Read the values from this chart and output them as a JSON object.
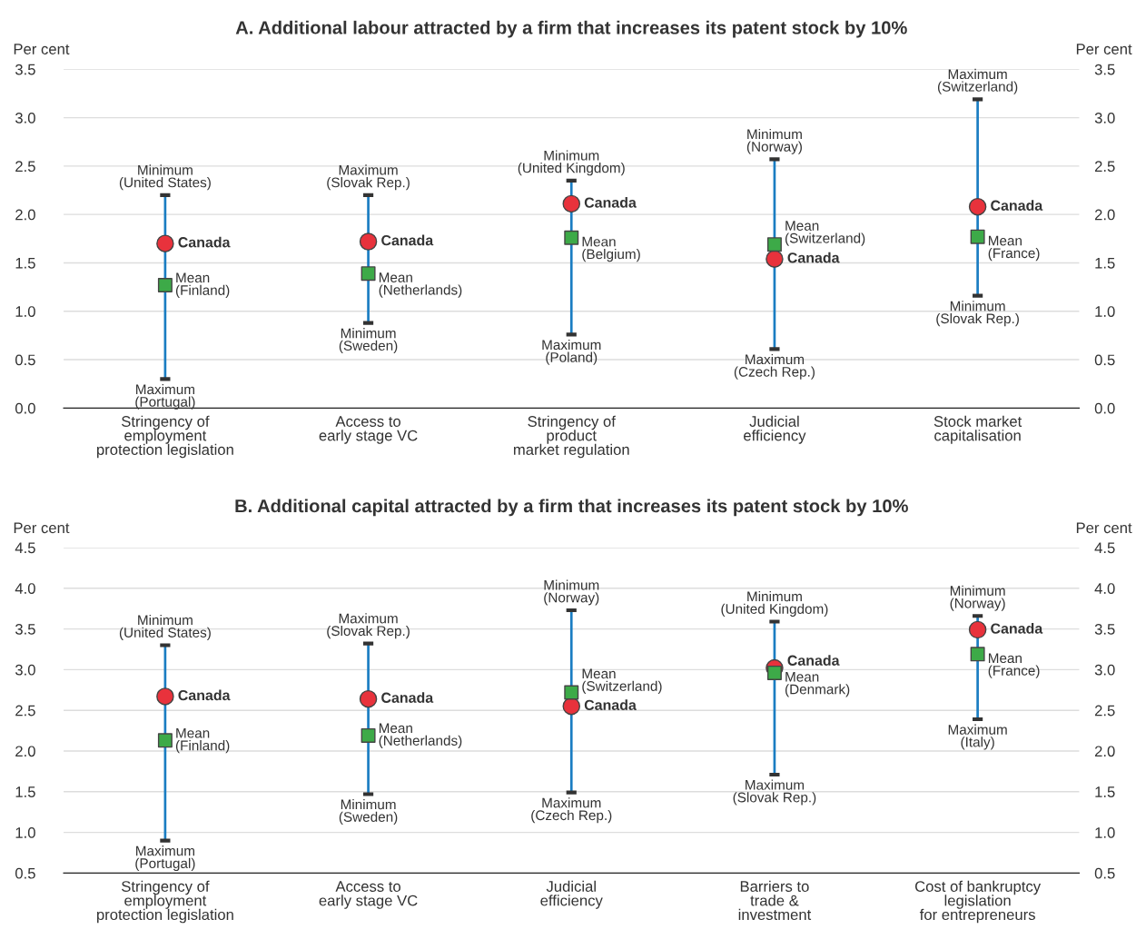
{
  "chart_data": [
    {
      "type": "bar",
      "title": "A. Additional labour attracted by a firm that increases its patent stock by 10%",
      "ylabel": "Per cent",
      "y2label": "Per cent",
      "categories": [
        "Stringency of\nemployment\nprotection legislation",
        "Access to\nearly stage VC",
        "Stringency of\nproduct\nmarket regulation",
        "Judicial\nefficiency",
        "Stock market\ncapitalisation"
      ],
      "ylim": [
        0,
        3.5
      ],
      "yticks": [
        {
          "value": 0,
          "label": "0.0"
        },
        0.5,
        {
          "value": 1,
          "label": "1.0"
        },
        1.5,
        {
          "value": 2,
          "label": "2.0"
        },
        2.5,
        {
          "value": 3,
          "label": "3.0"
        },
        3.5
      ],
      "y2lim": [
        0,
        3.5
      ],
      "y2ticks": [
        {
          "value": 0,
          "label": "0.0"
        },
        0.5,
        {
          "value": 1,
          "label": "1.0"
        },
        1.5,
        {
          "value": 2,
          "label": "2.0"
        },
        2.5,
        {
          "value": 3,
          "label": "3.0"
        },
        3.5
      ],
      "grid": "y",
      "legend": false,
      "series": [
        {
          "color": "#1a7dc2",
          "base": [
            0.3,
            0.88,
            0.76,
            0.61,
            1.16
          ],
          "values": [
            1.9,
            1.32,
            1.59,
            1.96,
            2.03
          ]
        },
        {
          "type": "scatter",
          "name": "Canada",
          "color": "#e8323c",
          "marker": "circle",
          "values": [
            1.7,
            1.72,
            2.11,
            1.54,
            2.08
          ]
        },
        {
          "type": "scatter",
          "color": "#3daa48",
          "marker": "square",
          "values": [
            1.27,
            1.39,
            1.76,
            1.69,
            1.77
          ]
        }
      ],
      "annotations": [
        {
          "text": "Minimum\n(United States)",
          "x": "Stringency of\nemployment\nprotection legislation",
          "y": 2.2
        },
        {
          "text": "Maximum\n(Portugal)",
          "x": "Stringency of\nemployment\nprotection legislation",
          "y": 0.3
        },
        {
          "text": "Mean\n(Finland)",
          "x": "Stringency of\nemployment\nprotection legislation",
          "y": 1.27
        },
        {
          "text": "Maximum\n(Slovak Rep.)",
          "x": "Access to\nearly stage VC",
          "y": 2.2
        },
        {
          "text": "Minimum\n(Sweden)",
          "x": "Access to\nearly stage VC",
          "y": 0.88
        },
        {
          "text": "Mean\n(Netherlands)",
          "x": "Access to\nearly stage VC",
          "y": 1.39
        },
        {
          "text": "Minimum\n(United Kingdom)",
          "x": "Stringency of\nproduct\nmarket regulation",
          "y": 2.35
        },
        {
          "text": "Maximum\n(Poland)",
          "x": "Stringency of\nproduct\nmarket regulation",
          "y": 0.76
        },
        {
          "text": "Mean\n(Belgium)",
          "x": "Stringency of\nproduct\nmarket regulation",
          "y": 1.76
        },
        {
          "text": "Minimum\n(Norway)",
          "x": "Judicial\nefficiency",
          "y": 2.57
        },
        {
          "text": "Maximum\n(Czech Rep.)",
          "x": "Judicial\nefficiency",
          "y": 0.61
        },
        {
          "text": "Mean\n(Switzerland)",
          "x": "Judicial\nefficiency",
          "y": 1.69
        },
        {
          "text": "Maximum\n(Switzerland)",
          "x": "Stock market\ncapitalisation",
          "y": 3.19
        },
        {
          "text": "Minimum\n(Slovak Rep.)",
          "x": "Stock market\ncapitalisation",
          "y": 1.16
        },
        {
          "text": "Mean\n(France)",
          "x": "Stock market\ncapitalisation",
          "y": 1.77
        }
      ]
    },
    {
      "type": "bar",
      "title": "B. Additional capital attracted by a firm that increases its patent stock by 10%",
      "ylabel": "Per cent",
      "y2label": "Per cent",
      "categories": [
        "Stringency of\nemployment\nprotection legislation",
        "Access to\nearly stage VC",
        "Judicial\nefficiency",
        "Barriers to\ntrade &\ninvestment",
        "Cost of bankruptcy\nlegislation\nfor entrepreneurs"
      ],
      "ylim": [
        0.5,
        4.5
      ],
      "yticks": [
        0.5,
        {
          "value": 1,
          "label": "1.0"
        },
        1.5,
        {
          "value": 2,
          "label": "2.0"
        },
        2.5,
        {
          "value": 3,
          "label": "3.0"
        },
        3.5,
        {
          "value": 4,
          "label": "4.0"
        },
        4.5
      ],
      "y2lim": [
        0.5,
        4.5
      ],
      "y2ticks": [
        0.5,
        {
          "value": 1,
          "label": "1.0"
        },
        1.5,
        {
          "value": 2,
          "label": "2.0"
        },
        2.5,
        {
          "value": 3,
          "label": "3.0"
        },
        3.5,
        {
          "value": 4,
          "label": "4.0"
        },
        4.5
      ],
      "grid": "y",
      "legend": false,
      "series": [
        {
          "color": "#1a7dc2",
          "base": [
            0.9,
            1.47,
            1.49,
            1.71,
            2.39
          ],
          "values": [
            2.4,
            1.85,
            2.24,
            1.88,
            1.27
          ]
        },
        {
          "type": "scatter",
          "name": "Canada",
          "color": "#e8323c",
          "marker": "circle",
          "values": [
            2.67,
            2.64,
            2.55,
            3.02,
            3.49
          ]
        },
        {
          "type": "scatter",
          "color": "#3daa48",
          "marker": "square",
          "values": [
            2.13,
            2.19,
            2.72,
            2.96,
            3.19
          ]
        }
      ],
      "annotations": [
        {
          "text": "Minimum\n(United States)",
          "x": "Stringency of\nemployment\nprotection legislation",
          "y": 3.3
        },
        {
          "text": "Maximum\n(Portugal)",
          "x": "Stringency of\nemployment\nprotection legislation",
          "y": 0.9
        },
        {
          "text": "Mean\n(Finland)",
          "x": "Stringency of\nemployment\nprotection legislation",
          "y": 2.13
        },
        {
          "text": "Maximum\n(Slovak Rep.)",
          "x": "Access to\nearly stage VC",
          "y": 3.32
        },
        {
          "text": "Minimum\n(Sweden)",
          "x": "Access to\nearly stage VC",
          "y": 1.47
        },
        {
          "text": "Mean\n(Netherlands)",
          "x": "Access to\nearly stage VC",
          "y": 2.19
        },
        {
          "text": "Minimum\n(Norway)",
          "x": "Judicial\nefficiency",
          "y": 3.73
        },
        {
          "text": "Maximum\n(Czech Rep.)",
          "x": "Judicial\nefficiency",
          "y": 1.49
        },
        {
          "text": "Mean\n(Switzerland)",
          "x": "Judicial\nefficiency",
          "y": 2.72
        },
        {
          "text": "Minimum\n(United Kingdom)",
          "x": "Barriers to\ntrade &\ninvestment",
          "y": 3.59
        },
        {
          "text": "Maximum\n(Slovak Rep.)",
          "x": "Barriers to\ntrade &\ninvestment",
          "y": 1.71
        },
        {
          "text": "Mean\n(Denmark)",
          "x": "Barriers to\ntrade &\ninvestment",
          "y": 2.96
        },
        {
          "text": "Minimum\n(Norway)",
          "x": "Cost of bankruptcy\nlegislation\nfor entrepreneurs",
          "y": 3.66
        },
        {
          "text": "Maximum\n(Italy)",
          "x": "Cost of bankruptcy\nlegislation\nfor entrepreneurs",
          "y": 2.39
        },
        {
          "text": "Mean\n(France)",
          "x": "Cost of bankruptcy\nlegislation\nfor entrepreneurs",
          "y": 3.19
        }
      ]
    }
  ]
}
